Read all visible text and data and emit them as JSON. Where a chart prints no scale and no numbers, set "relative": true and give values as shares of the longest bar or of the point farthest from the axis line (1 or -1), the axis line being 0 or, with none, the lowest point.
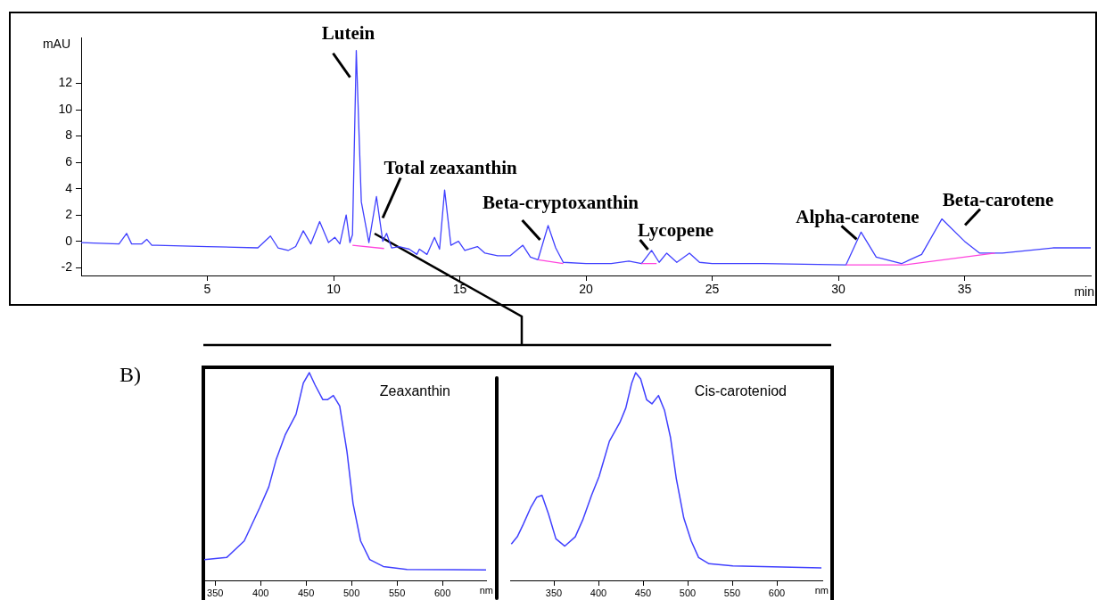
{
  "chart_data": [
    {
      "type": "line",
      "xlabel": "min",
      "ylabel": "mAU",
      "xlim": [
        0,
        40
      ],
      "ylim": [
        -2.6,
        15.5
      ],
      "xticks": [
        5,
        10,
        15,
        20,
        25,
        30,
        35
      ],
      "yticks": [
        -2,
        0,
        2,
        4,
        6,
        8,
        10,
        12
      ],
      "series": [
        {
          "color": "#4040ff",
          "x": [
            0,
            1.5,
            1.8,
            2.0,
            2.4,
            2.6,
            2.8,
            3,
            5,
            7,
            7.5,
            7.8,
            8.2,
            8.5,
            8.8,
            9.1,
            9.45,
            9.8,
            10.05,
            10.25,
            10.5,
            10.65,
            10.75,
            10.9,
            11.1,
            11.4,
            11.7,
            11.95,
            12.1,
            12.3,
            12.6,
            13.0,
            13.3,
            13.4,
            13.7,
            14.0,
            14.2,
            14.4,
            14.65,
            14.95,
            15.2,
            15.7,
            16.0,
            16.5,
            17.0,
            17.5,
            17.8,
            18.1,
            18.5,
            18.8,
            19.1,
            20,
            21,
            21.7,
            22.2,
            22.6,
            22.9,
            23.2,
            23.6,
            24.1,
            24.5,
            25,
            27,
            30.3,
            30.9,
            31.5,
            32.5,
            33.3,
            34.1,
            35,
            35.6,
            36.5,
            38.5,
            40
          ],
          "values": [
            -0.1,
            -0.2,
            0.6,
            -0.2,
            -0.2,
            0.15,
            -0.3,
            -0.3,
            -0.4,
            -0.5,
            0.4,
            -0.5,
            -0.7,
            -0.4,
            0.8,
            -0.2,
            1.5,
            -0.1,
            0.3,
            -0.2,
            2.0,
            -0.1,
            0.5,
            14.5,
            3.0,
            -0.1,
            3.4,
            0,
            0.6,
            -0.5,
            -0.4,
            -0.6,
            -1.0,
            -0.6,
            -1.0,
            0.3,
            -0.6,
            3.9,
            -0.3,
            0.0,
            -0.7,
            -0.4,
            -0.9,
            -1.1,
            -1.1,
            -0.3,
            -1.2,
            -1.4,
            1.2,
            -0.5,
            -1.6,
            -1.7,
            -1.7,
            -1.5,
            -1.7,
            -0.7,
            -1.6,
            -0.9,
            -1.6,
            -0.9,
            -1.6,
            -1.7,
            -1.7,
            -1.8,
            0.7,
            -1.2,
            -1.7,
            -1.0,
            1.7,
            0.0,
            -0.9,
            -0.9,
            -0.5,
            -0.5
          ]
        },
        {
          "color": "#ff44dd",
          "x": [
            10.75,
            12.0,
            12.1,
            18.1,
            19.1,
            19.2,
            22.2,
            22.8,
            22.9,
            30.3,
            32.6,
            36.2
          ],
          "values": [
            -0.3,
            -0.55,
            null,
            -1.4,
            -1.7,
            null,
            -1.7,
            -1.7,
            null,
            -1.8,
            -1.8,
            -0.9
          ]
        }
      ],
      "annotations": [
        {
          "text": "Lutein",
          "x": 10.9,
          "y": 14.5
        },
        {
          "text": "Total zeaxanthin",
          "x": 11.7,
          "y": 3.4
        },
        {
          "text": "Beta-cryptoxanthin",
          "x": 18.5,
          "y": 1.2
        },
        {
          "text": "Lycopene",
          "x": 22.6,
          "y": -0.7
        },
        {
          "text": "Alpha-carotene",
          "x": 30.9,
          "y": 0.7
        },
        {
          "text": "Beta-carotene",
          "x": 34.1,
          "y": 1.7
        }
      ]
    },
    {
      "type": "line",
      "title": "Zeaxanthin",
      "xlabel": "nm",
      "relative": true,
      "xlim": [
        338,
        648
      ],
      "xticks": [
        350,
        400,
        450,
        500,
        550,
        600
      ],
      "annotations": [
        "B)"
      ],
      "series": [
        {
          "color": "#4040ff",
          "x": [
            338,
            362.6,
            382,
            399,
            409,
            417,
            427,
            439,
            447,
            453.6,
            460,
            468.5,
            473.5,
            480,
            487,
            495,
            501.7,
            510,
            520,
            535,
            561,
            648
          ],
          "values": [
            0.1,
            0.11,
            0.19,
            0.35,
            0.45,
            0.58,
            0.7,
            0.8,
            0.95,
            1.0,
            0.94,
            0.87,
            0.87,
            0.89,
            0.84,
            0.62,
            0.37,
            0.19,
            0.1,
            0.067,
            0.053,
            0.05
          ]
        }
      ]
    },
    {
      "type": "line",
      "title": "Cis-caroteniod",
      "xlabel": "nm",
      "relative": true,
      "xlim": [
        301,
        651
      ],
      "xticks": [
        350,
        400,
        450,
        500,
        550,
        600
      ],
      "series": [
        {
          "color": "#4040ff",
          "x": [
            302.3,
            309,
            315.7,
            324,
            330.7,
            336.7,
            344,
            352.3,
            362.3,
            374,
            382.3,
            392.3,
            400.7,
            412.3,
            424,
            430.7,
            437.3,
            441.7,
            447.3,
            454,
            460,
            467.3,
            474,
            480.7,
            487.3,
            495.7,
            504,
            512.3,
            524,
            550.7,
            650
          ],
          "values": [
            0.175,
            0.21,
            0.27,
            0.35,
            0.4,
            0.41,
            0.32,
            0.2,
            0.165,
            0.21,
            0.29,
            0.41,
            0.5,
            0.67,
            0.76,
            0.83,
            0.95,
            1.0,
            0.97,
            0.87,
            0.85,
            0.89,
            0.82,
            0.69,
            0.49,
            0.3,
            0.19,
            0.11,
            0.08,
            0.07,
            0.06
          ]
        }
      ]
    }
  ]
}
